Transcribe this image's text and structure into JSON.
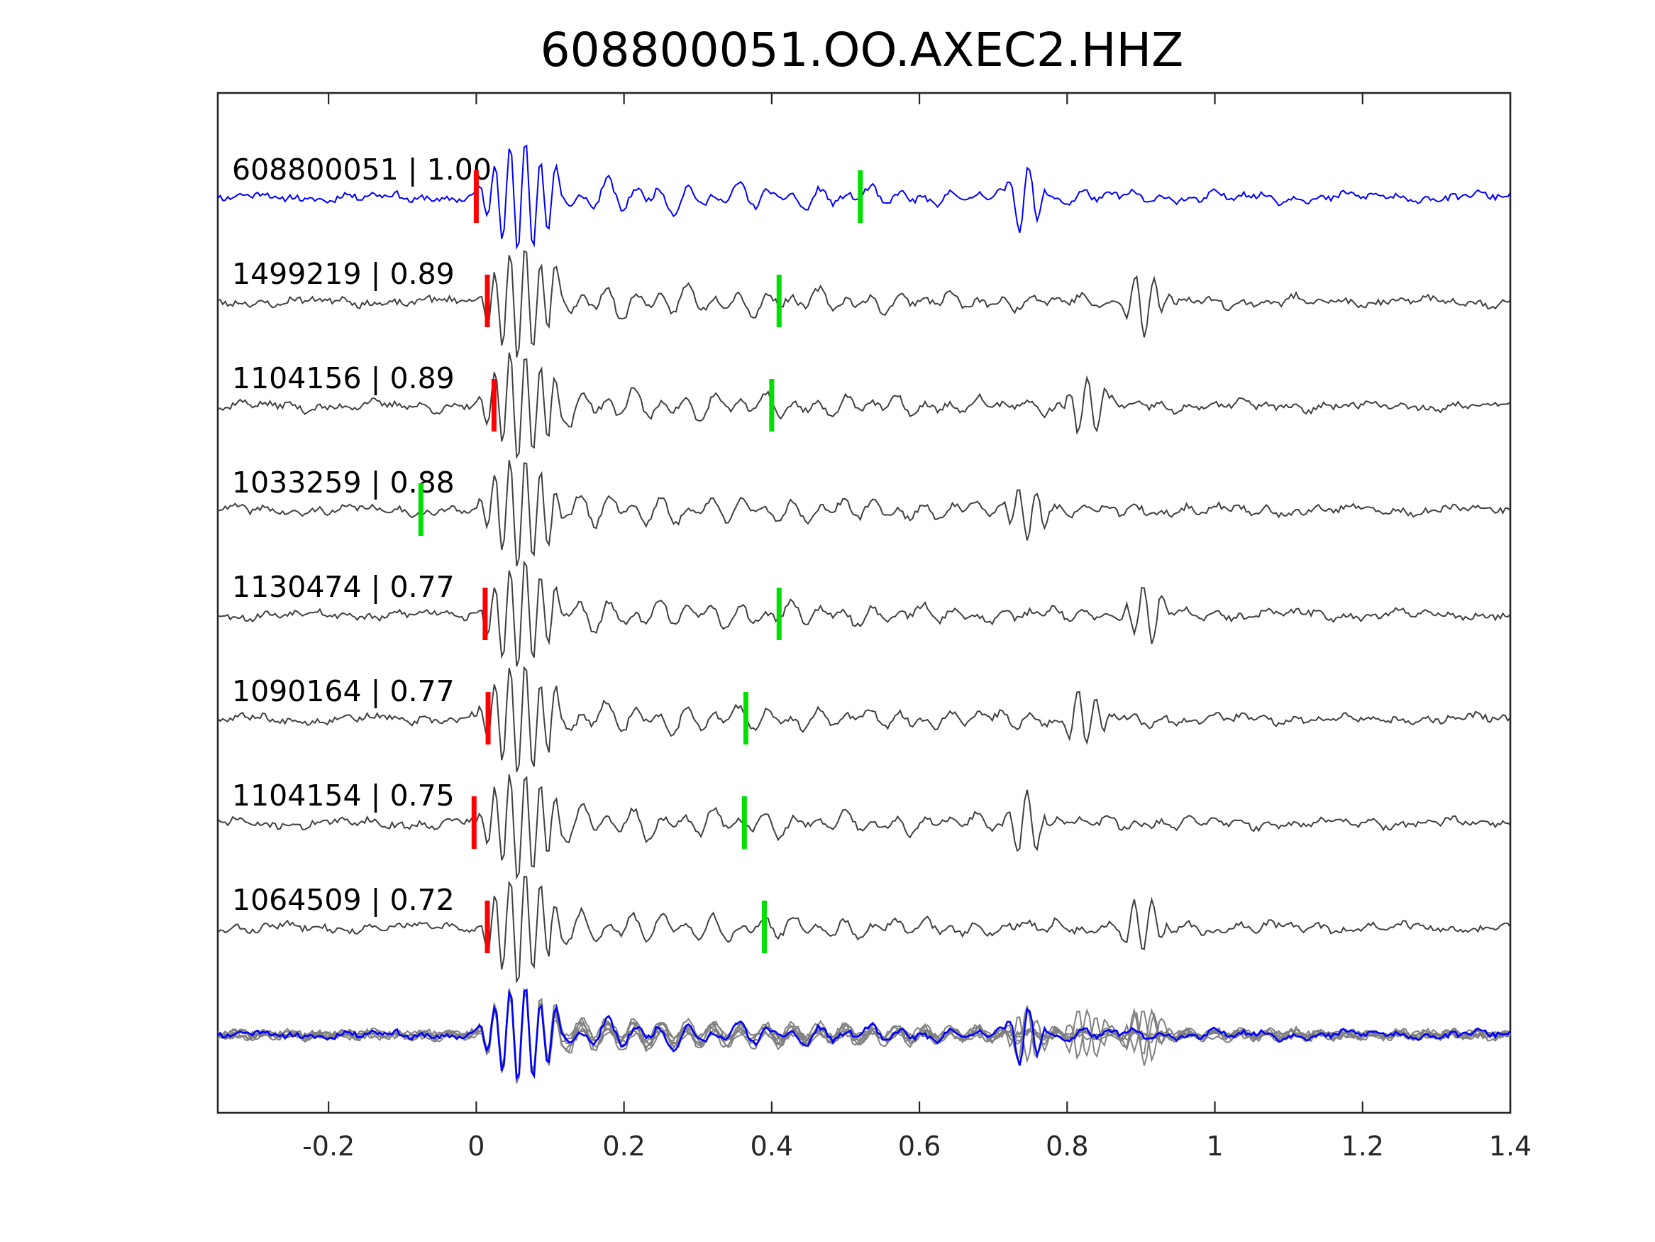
{
  "chart_data": {
    "type": "line",
    "title": "608800051.OO.AXEC2.HHZ",
    "xlabel": "",
    "ylabel": "",
    "xlim": [
      -0.35,
      1.4
    ],
    "xticks": [
      -0.2,
      0,
      0.2,
      0.4,
      0.6,
      0.8,
      1,
      1.2,
      1.4
    ],
    "xtick_labels": [
      "-0.2",
      "0",
      "0.2",
      "0.4",
      "0.6",
      "0.8",
      "1",
      "1.2",
      "1.4"
    ],
    "grid": false,
    "legend": "none",
    "colors": {
      "template": "#0000ff",
      "match": "#404040",
      "overlay": "#808080",
      "p_pick": "#ff0000",
      "s_pick": "#00e000"
    },
    "series": [
      {
        "name": "608800051 | 1.00",
        "event_id": "608800051",
        "cc": "1.00",
        "p_pick": 0.0,
        "s_pick": 0.52,
        "color": "template",
        "seed": 11
      },
      {
        "name": "1499219 | 0.89",
        "event_id": "1499219",
        "cc": "0.89",
        "p_pick": 0.015,
        "s_pick": 0.41,
        "color": "match",
        "seed": 23
      },
      {
        "name": "1104156 | 0.89",
        "event_id": "1104156",
        "cc": "0.89",
        "p_pick": 0.024,
        "s_pick": 0.4,
        "color": "match",
        "seed": 37
      },
      {
        "name": "1033259 | 0.88",
        "event_id": "1033259",
        "cc": "0.88",
        "p_pick": null,
        "s_pick": -0.075,
        "color": "match",
        "seed": 41
      },
      {
        "name": "1130474 | 0.77",
        "event_id": "1130474",
        "cc": "0.77",
        "p_pick": 0.012,
        "s_pick": 0.41,
        "color": "match",
        "seed": 53
      },
      {
        "name": "1090164 | 0.77",
        "event_id": "1090164",
        "cc": "0.77",
        "p_pick": 0.016,
        "s_pick": 0.365,
        "color": "match",
        "seed": 67
      },
      {
        "name": "1104154 | 0.75",
        "event_id": "1104154",
        "cc": "0.75",
        "p_pick": -0.003,
        "s_pick": 0.363,
        "color": "match",
        "seed": 71
      },
      {
        "name": "1064509 | 0.72",
        "event_id": "1064509",
        "cc": "0.72",
        "p_pick": 0.015,
        "s_pick": 0.39,
        "color": "match",
        "seed": 83
      }
    ],
    "stack": {
      "name": "overlay of all traces",
      "template_color": "template",
      "trace_color": "overlay"
    }
  }
}
